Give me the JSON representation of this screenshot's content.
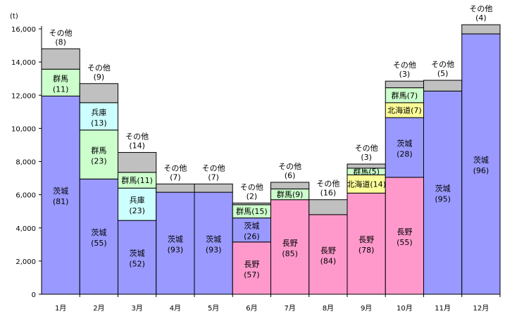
{
  "chart_data": {
    "type": "bar",
    "stacked": true,
    "unit_label": "(t)",
    "ylim": [
      0,
      16000
    ],
    "yticks": [
      0,
      2000,
      4000,
      6000,
      8000,
      10000,
      12000,
      14000,
      16000
    ],
    "ytick_labels": [
      "0",
      "2,000",
      "4,000",
      "6,000",
      "8,000",
      "10,000",
      "12,000",
      "14,000",
      "16,000"
    ],
    "grid": false,
    "legend": "none",
    "categories": [
      "1月",
      "2月",
      "3月",
      "4月",
      "5月",
      "6月",
      "7月",
      "8月",
      "9月",
      "10月",
      "11月",
      "12月"
    ],
    "colors": {
      "茨城": "#9999ff",
      "長野": "#ff99cc",
      "北海道": "#ffff99",
      "兵庫": "#ccffff",
      "群馬": "#ccffcc",
      "その他": "#c0c0c0"
    },
    "columns": [
      {
        "segments": [
          {
            "name": "茨城",
            "value": 11950,
            "pct": "(81)"
          },
          {
            "name": "群馬",
            "value": 1620,
            "pct": "(11)"
          },
          {
            "name": "その他",
            "value": 1230,
            "pct": "(8)"
          }
        ]
      },
      {
        "segments": [
          {
            "name": "茨城",
            "value": 6950,
            "pct": "(55)"
          },
          {
            "name": "群馬",
            "value": 2950,
            "pct": "(23)"
          },
          {
            "name": "兵庫",
            "value": 1650,
            "pct": "(13)"
          },
          {
            "name": "その他",
            "value": 1150,
            "pct": "(9)"
          }
        ]
      },
      {
        "segments": [
          {
            "name": "茨城",
            "value": 4450,
            "pct": "(52)"
          },
          {
            "name": "兵庫",
            "value": 1950,
            "pct": "(23)"
          },
          {
            "name": "群馬",
            "value": 950,
            "pct": "(11)"
          },
          {
            "name": "その他",
            "value": 1200,
            "pct": "(14)"
          }
        ]
      },
      {
        "segments": [
          {
            "name": "茨城",
            "value": 6150,
            "pct": "(93)"
          },
          {
            "name": "その他",
            "value": 500,
            "pct": "(7)"
          }
        ]
      },
      {
        "segments": [
          {
            "name": "茨城",
            "value": 6150,
            "pct": "(93)"
          },
          {
            "name": "その他",
            "value": 500,
            "pct": "(7)"
          }
        ]
      },
      {
        "segments": [
          {
            "name": "長野",
            "value": 3150,
            "pct": "(57)"
          },
          {
            "name": "茨城",
            "value": 1450,
            "pct": "(26)"
          },
          {
            "name": "群馬",
            "value": 800,
            "pct": "(15)"
          },
          {
            "name": "その他",
            "value": 100,
            "pct": "(2)"
          }
        ]
      },
      {
        "segments": [
          {
            "name": "長野",
            "value": 5700,
            "pct": "(85)"
          },
          {
            "name": "群馬",
            "value": 650,
            "pct": "(9)"
          },
          {
            "name": "その他",
            "value": 400,
            "pct": "(6)"
          }
        ]
      },
      {
        "segments": [
          {
            "name": "長野",
            "value": 4800,
            "pct": "(84)"
          },
          {
            "name": "その他",
            "value": 900,
            "pct": "(16)"
          }
        ]
      },
      {
        "segments": [
          {
            "name": "長野",
            "value": 6100,
            "pct": "(78)"
          },
          {
            "name": "北海道",
            "value": 1100,
            "pct": "(14)"
          },
          {
            "name": "群馬",
            "value": 400,
            "pct": "(5)"
          },
          {
            "name": "その他",
            "value": 250,
            "pct": "(3)"
          }
        ]
      },
      {
        "segments": [
          {
            "name": "長野",
            "value": 7050,
            "pct": "(55)"
          },
          {
            "name": "茨城",
            "value": 3600,
            "pct": "(28)"
          },
          {
            "name": "北海道",
            "value": 900,
            "pct": "(7)"
          },
          {
            "name": "群馬",
            "value": 900,
            "pct": "(7)"
          },
          {
            "name": "その他",
            "value": 400,
            "pct": "(3)"
          }
        ]
      },
      {
        "segments": [
          {
            "name": "茨城",
            "value": 12250,
            "pct": "(95)"
          },
          {
            "name": "その他",
            "value": 650,
            "pct": "(5)"
          }
        ]
      },
      {
        "segments": [
          {
            "name": "茨城",
            "value": 15700,
            "pct": "(96)"
          },
          {
            "name": "その他",
            "value": 550,
            "pct": "(4)"
          }
        ]
      }
    ]
  }
}
